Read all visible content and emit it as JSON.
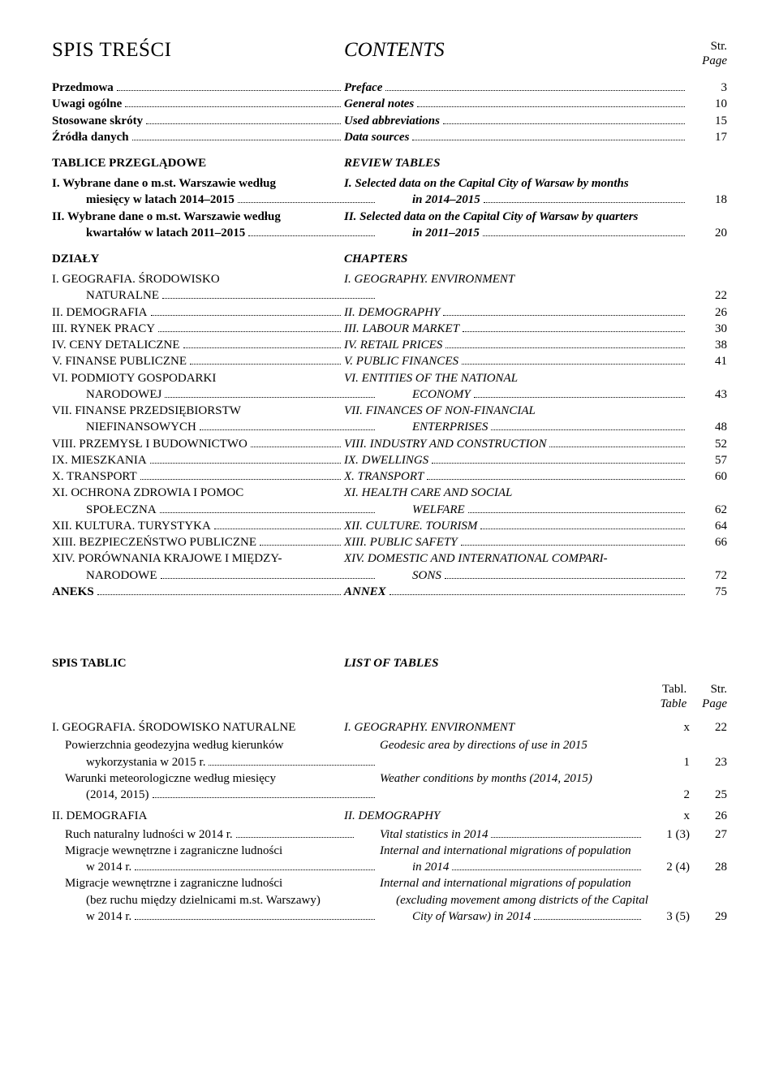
{
  "titles": {
    "left": "SPIS TREŚCI",
    "right": "CONTENTS",
    "str": "Str.",
    "page": "Page"
  },
  "front": [
    {
      "l": "Przedmowa",
      "r": "Preface",
      "pg": "3",
      "bold": true
    },
    {
      "l": "Uwagi ogólne",
      "r": "General notes",
      "pg": "10",
      "bold": true
    },
    {
      "l": "Stosowane skróty",
      "r": "Used abbreviations",
      "pg": "15",
      "bold": true
    },
    {
      "l": "Źródła danych",
      "r": "Data sources",
      "pg": "17",
      "bold": true
    }
  ],
  "review": {
    "l": "TABLICE PRZEGLĄDOWE",
    "r": "REVIEW TABLES"
  },
  "review_items": [
    {
      "l1": "I.  Wybrane dane o m.st. Warszawie według",
      "l2": "miesięcy w latach 2014–2015",
      "r1": "I.  Selected data on the Capital City of Warsaw by months",
      "r2": "in 2014–2015",
      "pg": "18"
    },
    {
      "l1": "II. Wybrane dane o m.st. Warszawie według",
      "l2": "kwartałów w latach  2011–2015",
      "r1": "II. Selected data on the Capital City of Warsaw by quarters",
      "r2": "in 2011–2015",
      "pg": "20"
    }
  ],
  "chapters_head": {
    "l": "DZIAŁY",
    "r": "CHAPTERS"
  },
  "chapters": [
    {
      "l1": "I.    GEOGRAFIA. ŚRODOWISKO",
      "l2": "NATURALNE",
      "r": "I.    GEOGRAPHY. ENVIRONMENT",
      "pg": "22"
    },
    {
      "l": "II.   DEMOGRAFIA",
      "r": "II.   DEMOGRAPHY",
      "pg": "26"
    },
    {
      "l": "III.  RYNEK PRACY",
      "r": "III.  LABOUR MARKET",
      "pg": "30"
    },
    {
      "l": "IV.  CENY DETALICZNE",
      "r": "IV.   RETAIL PRICES",
      "pg": "38"
    },
    {
      "l": "V.   FINANSE PUBLICZNE",
      "r": "V.    PUBLIC FINANCES",
      "pg": "41"
    },
    {
      "l1": "VI.  PODMIOTY GOSPODARKI",
      "l2": "NARODOWEJ",
      "r1": "VI.   ENTITIES OF THE NATIONAL",
      "r2": "ECONOMY",
      "pg": "43"
    },
    {
      "l1": "VII. FINANSE PRZEDSIĘBIORSTW",
      "l2": "NIEFINANSOWYCH",
      "r1": "VII.  FINANCES OF NON-FINANCIAL",
      "r2": "ENTERPRISES",
      "pg": "48"
    },
    {
      "l": "VIII. PRZEMYSŁ I BUDOWNICTWO",
      "r": "VIII. INDUSTRY AND CONSTRUCTION",
      "pg": "52"
    },
    {
      "l": "IX.  MIESZKANIA",
      "r": "IX.   DWELLINGS",
      "pg": "57"
    },
    {
      "l": "X.   TRANSPORT",
      "r": "X.    TRANSPORT",
      "pg": "60"
    },
    {
      "l1": "XI.  OCHRONA ZDROWIA I POMOC",
      "l2": "SPOŁECZNA",
      "r1": "XI.   HEALTH CARE AND SOCIAL",
      "r2": "WELFARE",
      "pg": "62"
    },
    {
      "l": "XII. KULTURA. TURYSTYKA",
      "r": "XII.  CULTURE. TOURISM",
      "pg": "64"
    },
    {
      "l": "XIII. BEZPIECZEŃSTWO PUBLICZNE",
      "r": "XIII. PUBLIC SAFETY",
      "pg": "66"
    },
    {
      "l1": "XIV. PORÓWNANIA KRAJOWE I MIĘDZY-",
      "l2": "NARODOWE",
      "r1": "XIV. DOMESTIC AND INTERNATIONAL COMPARI-",
      "r2": "SONS",
      "pg": "72"
    },
    {
      "l": "ANEKS",
      "r": "ANNEX",
      "pg": "75",
      "bold": true
    }
  ],
  "lot_head": {
    "l": "SPIS TABLIC",
    "r": "LIST OF TABLES"
  },
  "lot_cols": {
    "tabl": "Tabl.",
    "table": "Table",
    "str": "Str.",
    "page": "Page"
  },
  "lot": [
    {
      "type": "section",
      "l": "I. GEOGRAFIA. ŚRODOWISKO NATURALNE",
      "r": "I. GEOGRAPHY. ENVIRONMENT",
      "tb": "x",
      "pg": "22"
    },
    {
      "l1": "Powierzchnia geodezyjna według kierunków",
      "l2": "wykorzystania w 2015 r.",
      "r": "Geodesic area by directions of use in 2015",
      "tb": "1",
      "pg": "23",
      "rindent": true
    },
    {
      "l1": "Warunki meteorologiczne według miesięcy",
      "l2": "(2014, 2015)",
      "r": "Weather conditions by months (2014, 2015)",
      "tb": "2",
      "pg": "25",
      "rindent": true
    },
    {
      "type": "section",
      "l": "II. DEMOGRAFIA",
      "r": "II. DEMOGRAPHY",
      "tb": "x",
      "pg": "26"
    },
    {
      "l": "Ruch naturalny ludności w 2014 r.",
      "r": "Vital statistics in 2014",
      "tb": "1 (3)",
      "pg": "27",
      "lindent": true,
      "rindent": true
    },
    {
      "l1": "Migracje wewnętrzne i zagraniczne ludności",
      "l2": "w 2014 r.",
      "r1": "Internal and international migrations of population",
      "r2": "in 2014",
      "tb": "2 (4)",
      "pg": "28"
    },
    {
      "l1": "Migracje wewnętrzne i zagraniczne ludności",
      "l2": "(bez ruchu między dzielnicami m.st. Warszawy)",
      "l3": "w 2014 r.",
      "r1": "Internal and international migrations of population",
      "r2": "(excluding movement among districts of the Capital",
      "r3": "City of Warsaw) in 2014",
      "tb": "3 (5)",
      "pg": "29"
    }
  ]
}
